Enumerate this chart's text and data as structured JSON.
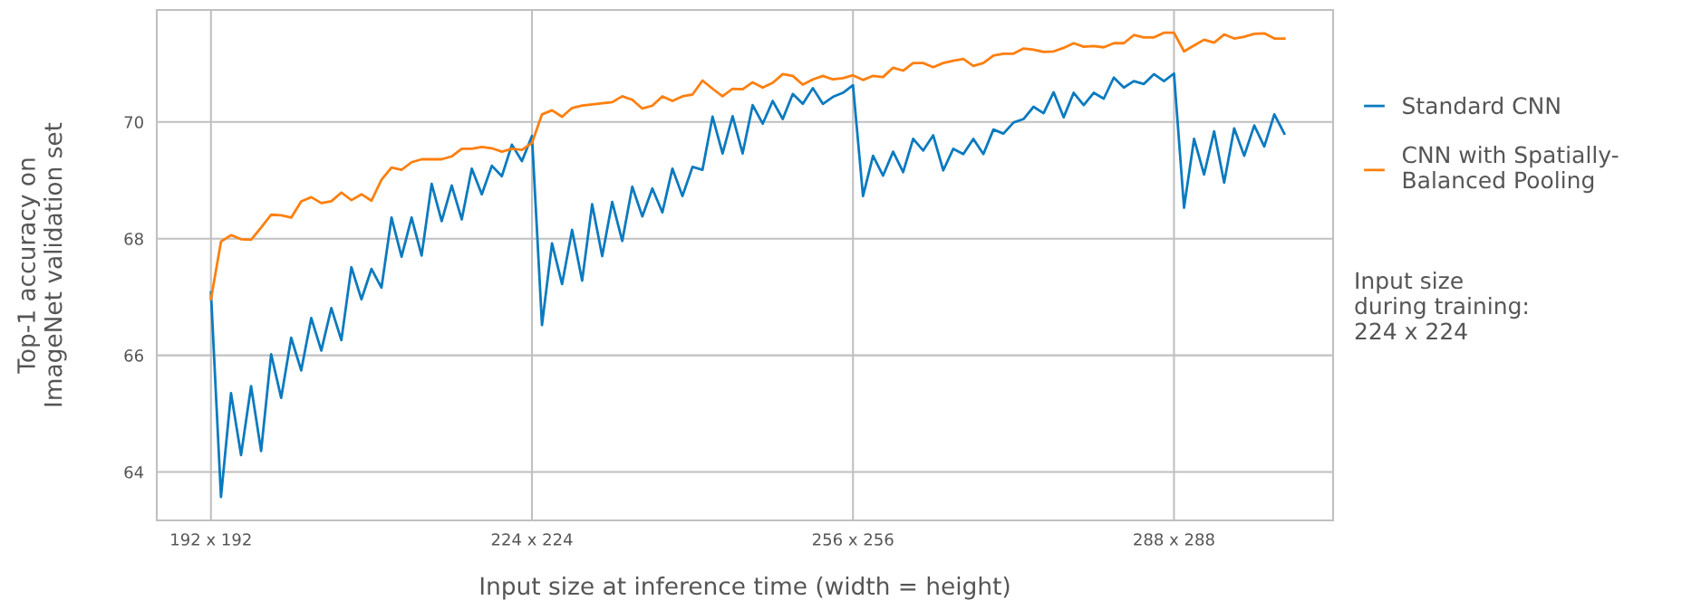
{
  "chart_data": {
    "type": "line",
    "xlabel": "Input size at inference time (width = height)",
    "ylabel": "Top-1 accuracy on\nImageNet validation set",
    "categories": [
      "192 x 192",
      null,
      null,
      null,
      null,
      null,
      null,
      null,
      null,
      null,
      null,
      null,
      null,
      null,
      null,
      null,
      null,
      null,
      null,
      null,
      null,
      null,
      null,
      null,
      null,
      null,
      null,
      null,
      null,
      null,
      null,
      null,
      "224 x 224",
      null,
      null,
      null,
      null,
      null,
      null,
      null,
      null,
      null,
      null,
      null,
      null,
      null,
      null,
      null,
      null,
      null,
      null,
      null,
      null,
      null,
      null,
      null,
      null,
      null,
      null,
      null,
      null,
      null,
      null,
      null,
      "256 x 256",
      null,
      null,
      null,
      null,
      null,
      null,
      null,
      null,
      null,
      null,
      null,
      null,
      null,
      null,
      null,
      null,
      null,
      null,
      null,
      null,
      null,
      null,
      null,
      null,
      null,
      null,
      null,
      null,
      null,
      null,
      null,
      "288 x 288",
      null,
      null,
      null,
      null,
      null,
      null,
      null,
      null,
      null,
      null,
      null
    ],
    "series": [
      {
        "name": "Standard CNN",
        "color": "#0a7abf",
        "values": [
          67.08,
          63.57,
          65.35,
          64.29,
          65.47,
          64.36,
          66.02,
          65.27,
          66.3,
          65.74,
          66.64,
          66.08,
          66.81,
          66.26,
          67.51,
          66.96,
          67.48,
          67.16,
          68.36,
          67.69,
          68.36,
          67.71,
          68.94,
          68.3,
          68.91,
          68.33,
          69.2,
          68.76,
          69.25,
          69.07,
          69.61,
          69.33,
          69.76,
          66.52,
          67.92,
          67.22,
          68.15,
          67.28,
          68.59,
          67.7,
          68.63,
          67.96,
          68.89,
          68.38,
          68.86,
          68.45,
          69.2,
          68.73,
          69.23,
          69.18,
          70.09,
          69.46,
          70.1,
          69.46,
          70.29,
          69.97,
          70.36,
          70.05,
          70.48,
          70.31,
          70.58,
          70.31,
          70.43,
          70.5,
          70.63,
          68.73,
          69.42,
          69.08,
          69.49,
          69.14,
          69.71,
          69.51,
          69.77,
          69.17,
          69.54,
          69.45,
          69.71,
          69.45,
          69.87,
          69.8,
          69.99,
          70.05,
          70.26,
          70.15,
          70.51,
          70.08,
          70.5,
          70.29,
          70.5,
          70.4,
          70.76,
          70.59,
          70.7,
          70.65,
          70.82,
          70.7,
          70.83,
          68.53,
          69.71,
          69.1,
          69.84,
          68.96,
          69.89,
          69.42,
          69.94,
          69.58,
          70.13,
          69.8
        ]
      },
      {
        "name": "CNN with Spatially-\nBalanced Pooling",
        "color": "#ff7f0e",
        "values": [
          66.96,
          67.95,
          68.06,
          67.99,
          67.98,
          68.19,
          68.41,
          68.4,
          68.36,
          68.64,
          68.71,
          68.61,
          68.64,
          68.79,
          68.66,
          68.76,
          68.65,
          69.01,
          69.22,
          69.18,
          69.31,
          69.36,
          69.36,
          69.36,
          69.41,
          69.54,
          69.54,
          69.57,
          69.55,
          69.49,
          69.54,
          69.52,
          69.64,
          70.13,
          70.2,
          70.09,
          70.24,
          70.28,
          70.3,
          70.32,
          70.34,
          70.44,
          70.38,
          70.23,
          70.28,
          70.44,
          70.36,
          70.44,
          70.47,
          70.71,
          70.57,
          70.44,
          70.57,
          70.56,
          70.68,
          70.59,
          70.67,
          70.82,
          70.79,
          70.64,
          70.73,
          70.79,
          70.73,
          70.75,
          70.8,
          70.72,
          70.79,
          70.77,
          70.93,
          70.88,
          71.01,
          71.01,
          70.94,
          71.01,
          71.05,
          71.08,
          70.96,
          71.01,
          71.14,
          71.17,
          71.17,
          71.26,
          71.24,
          71.2,
          71.21,
          71.27,
          71.35,
          71.29,
          71.3,
          71.28,
          71.35,
          71.35,
          71.49,
          71.45,
          71.45,
          71.53,
          71.53,
          71.21,
          71.31,
          71.41,
          71.36,
          71.5,
          71.43,
          71.46,
          71.51,
          71.52,
          71.43,
          71.43
        ]
      }
    ],
    "ylim": [
      63.17,
      71.92
    ],
    "yticks": [
      64,
      66,
      68,
      70
    ],
    "grid": true,
    "legend": "right",
    "marker": "none",
    "line_style": "solid",
    "annotations": [
      "Input size\nduring training:\n224 x 224"
    ]
  }
}
